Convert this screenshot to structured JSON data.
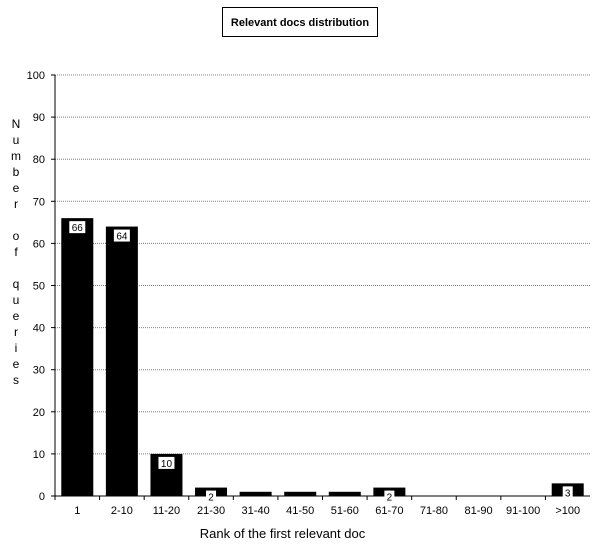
{
  "chart_data": {
    "type": "bar",
    "title": "Relevant docs distribution",
    "xlabel": "Rank of the first relevant doc",
    "ylabel": "Number of queries",
    "categories": [
      "1",
      "2-10",
      "11-20",
      "21-30",
      "31-40",
      "41-50",
      "51-60",
      "61-70",
      "71-80",
      "81-90",
      "91-100",
      ">100"
    ],
    "values": [
      66,
      64,
      10,
      2,
      1,
      1,
      1,
      2,
      0,
      0,
      0,
      3
    ],
    "data_labels": [
      "66",
      "64",
      "10",
      "2",
      "",
      "",
      "",
      "2",
      "",
      "",
      "",
      "3"
    ],
    "ylim": [
      0,
      100
    ],
    "yticks": [
      0,
      10,
      20,
      30,
      40,
      50,
      60,
      70,
      80,
      90,
      100
    ],
    "grid": true,
    "bar_color": "#000000",
    "grid_color": "#808080"
  }
}
